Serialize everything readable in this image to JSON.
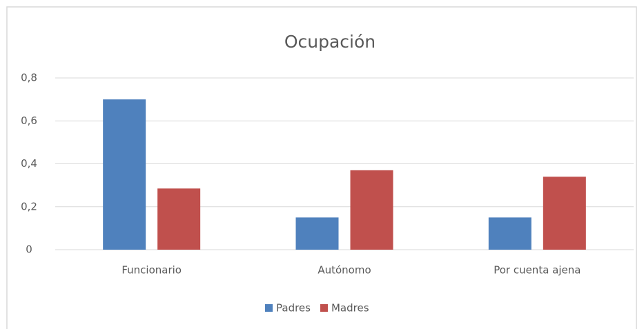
{
  "chart_data": {
    "type": "bar",
    "title": "Ocupación",
    "categories": [
      "Funcionario",
      "Autónomo",
      "Por cuenta ajena"
    ],
    "series": [
      {
        "name": "Padres",
        "color": "#4f81bd",
        "values": [
          0.7,
          0.15,
          0.15
        ]
      },
      {
        "name": "Madres",
        "color": "#c0504d",
        "values": [
          0.285,
          0.37,
          0.34
        ]
      }
    ],
    "ylim": [
      0,
      0.8
    ],
    "yticks": [
      0,
      {
        "value": 0.2,
        "label": "0,2"
      },
      {
        "value": 0.4,
        "label": "0,4"
      },
      {
        "value": 0.6,
        "label": "0,6"
      },
      {
        "value": 0.8,
        "label": "0,8"
      }
    ],
    "grid": true,
    "legend": "bottom"
  }
}
